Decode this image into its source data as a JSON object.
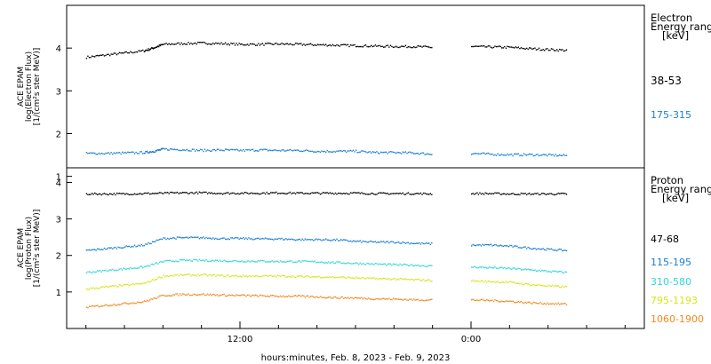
{
  "chart_data": [
    {
      "type": "scatter",
      "ylabel_lines": [
        "ACE EPAM",
        "log(Electron Flux)",
        "[1/(cm²s ster MeV)]"
      ],
      "legend_title_lines": [
        "Electron",
        "Energy ranges",
        "[keV]"
      ],
      "ylim": [
        1.2,
        5.0
      ],
      "y_ticks": [
        1,
        2,
        3,
        4
      ],
      "series": [
        {
          "name": "38-53",
          "color": "#000000",
          "x": [
            "2023-02-08T04:00",
            "2023-02-08T05:00",
            "2023-02-08T06:00",
            "2023-02-08T07:00",
            "2023-02-08T07:30",
            "2023-02-08T08:00",
            "2023-02-08T09:00",
            "2023-02-08T10:00",
            "2023-02-08T11:00",
            "2023-02-08T12:00",
            "2023-02-08T13:00",
            "2023-02-08T14:00",
            "2023-02-08T15:00",
            "2023-02-08T16:00",
            "2023-02-08T17:00",
            "2023-02-08T18:00",
            "2023-02-08T19:00",
            "2023-02-08T20:00",
            "2023-02-08T21:00",
            "2023-02-08T22:00",
            "2023-02-09T00:00",
            "2023-02-09T01:00",
            "2023-02-09T02:00",
            "2023-02-09T03:00",
            "2023-02-09T04:00",
            "2023-02-09T05:00"
          ],
          "y": [
            3.8,
            3.85,
            3.9,
            3.95,
            4.02,
            4.1,
            4.12,
            4.13,
            4.12,
            4.1,
            4.1,
            4.11,
            4.1,
            4.09,
            4.08,
            4.07,
            4.06,
            4.05,
            4.05,
            4.03,
            4.05,
            4.04,
            4.03,
            4.0,
            3.98,
            3.96
          ]
        },
        {
          "name": "175-315",
          "color": "#1a7fd1",
          "x": [
            "2023-02-08T04:00",
            "2023-02-08T05:00",
            "2023-02-08T06:00",
            "2023-02-08T07:00",
            "2023-02-08T07:30",
            "2023-02-08T08:00",
            "2023-02-08T09:00",
            "2023-02-08T10:00",
            "2023-02-08T11:00",
            "2023-02-08T12:00",
            "2023-02-08T13:00",
            "2023-02-08T14:00",
            "2023-02-08T15:00",
            "2023-02-08T16:00",
            "2023-02-08T17:00",
            "2023-02-08T18:00",
            "2023-02-08T19:00",
            "2023-02-08T20:00",
            "2023-02-08T21:00",
            "2023-02-08T22:00",
            "2023-02-09T00:00",
            "2023-02-09T01:00",
            "2023-02-09T02:00",
            "2023-02-09T03:00",
            "2023-02-09T04:00",
            "2023-02-09T05:00"
          ],
          "y": [
            1.55,
            1.55,
            1.56,
            1.57,
            1.6,
            1.65,
            1.64,
            1.62,
            1.63,
            1.62,
            1.63,
            1.62,
            1.62,
            1.6,
            1.6,
            1.6,
            1.57,
            1.57,
            1.56,
            1.53,
            1.55,
            1.53,
            1.52,
            1.52,
            1.51,
            1.5
          ]
        }
      ]
    },
    {
      "type": "scatter",
      "ylabel_lines": [
        "ACE EPAM",
        "log(Proton Flux)",
        "[1/(cm²s ster MeV)]"
      ],
      "legend_title_lines": [
        "Proton",
        "Energy ranges",
        "[keV]"
      ],
      "xlabel": "hours:minutes, Feb.  8, 2023 - Feb.  9, 2023",
      "x_ticks": [
        "12:00",
        "0:00"
      ],
      "ylim": [
        0.0,
        4.4
      ],
      "y_ticks": [
        1,
        2,
        3,
        4
      ],
      "series": [
        {
          "name": "47-68",
          "color": "#000000",
          "x": [
            "2023-02-08T04:00",
            "2023-02-08T05:00",
            "2023-02-08T06:00",
            "2023-02-08T07:00",
            "2023-02-08T08:00",
            "2023-02-08T09:00",
            "2023-02-08T10:00",
            "2023-02-08T11:00",
            "2023-02-08T12:00",
            "2023-02-08T13:00",
            "2023-02-08T14:00",
            "2023-02-08T15:00",
            "2023-02-08T16:00",
            "2023-02-08T17:00",
            "2023-02-08T18:00",
            "2023-02-08T19:00",
            "2023-02-08T20:00",
            "2023-02-08T21:00",
            "2023-02-08T22:00",
            "2023-02-09T00:00",
            "2023-02-09T01:00",
            "2023-02-09T02:00",
            "2023-02-09T03:00",
            "2023-02-09T04:00",
            "2023-02-09T05:00"
          ],
          "y": [
            3.7,
            3.7,
            3.7,
            3.71,
            3.72,
            3.73,
            3.73,
            3.72,
            3.72,
            3.72,
            3.73,
            3.72,
            3.72,
            3.72,
            3.72,
            3.71,
            3.71,
            3.71,
            3.7,
            3.71,
            3.71,
            3.7,
            3.7,
            3.7,
            3.7
          ]
        },
        {
          "name": "115-195",
          "color": "#1a7fd1",
          "x": [
            "2023-02-08T04:00",
            "2023-02-08T05:00",
            "2023-02-08T06:00",
            "2023-02-08T07:00",
            "2023-02-08T08:00",
            "2023-02-08T09:00",
            "2023-02-08T10:00",
            "2023-02-08T11:00",
            "2023-02-08T12:00",
            "2023-02-08T13:00",
            "2023-02-08T14:00",
            "2023-02-08T15:00",
            "2023-02-08T16:00",
            "2023-02-08T17:00",
            "2023-02-08T18:00",
            "2023-02-08T19:00",
            "2023-02-08T20:00",
            "2023-02-08T21:00",
            "2023-02-08T22:00",
            "2023-02-09T00:00",
            "2023-02-09T01:00",
            "2023-02-09T02:00",
            "2023-02-09T03:00",
            "2023-02-09T04:00",
            "2023-02-09T05:00"
          ],
          "y": [
            2.15,
            2.2,
            2.25,
            2.3,
            2.48,
            2.5,
            2.5,
            2.48,
            2.48,
            2.47,
            2.47,
            2.45,
            2.45,
            2.44,
            2.4,
            2.38,
            2.38,
            2.35,
            2.33,
            2.3,
            2.3,
            2.27,
            2.22,
            2.18,
            2.15
          ]
        },
        {
          "name": "310-580",
          "color": "#33d6d6",
          "x": [
            "2023-02-08T04:00",
            "2023-02-08T05:00",
            "2023-02-08T06:00",
            "2023-02-08T07:00",
            "2023-02-08T08:00",
            "2023-02-08T09:00",
            "2023-02-08T10:00",
            "2023-02-08T11:00",
            "2023-02-08T12:00",
            "2023-02-08T13:00",
            "2023-02-08T14:00",
            "2023-02-08T15:00",
            "2023-02-08T16:00",
            "2023-02-08T17:00",
            "2023-02-08T18:00",
            "2023-02-08T19:00",
            "2023-02-08T20:00",
            "2023-02-08T21:00",
            "2023-02-08T22:00",
            "2023-02-09T00:00",
            "2023-02-09T01:00",
            "2023-02-09T02:00",
            "2023-02-09T03:00",
            "2023-02-09T04:00",
            "2023-02-09T05:00"
          ],
          "y": [
            1.55,
            1.6,
            1.65,
            1.7,
            1.85,
            1.88,
            1.88,
            1.87,
            1.86,
            1.86,
            1.85,
            1.85,
            1.84,
            1.82,
            1.8,
            1.78,
            1.76,
            1.75,
            1.72,
            1.7,
            1.68,
            1.66,
            1.62,
            1.58,
            1.55
          ]
        },
        {
          "name": "795-1193",
          "color": "#d6e61a",
          "x": [
            "2023-02-08T04:00",
            "2023-02-08T05:00",
            "2023-02-08T06:00",
            "2023-02-08T07:00",
            "2023-02-08T08:00",
            "2023-02-08T09:00",
            "2023-02-08T10:00",
            "2023-02-08T11:00",
            "2023-02-08T12:00",
            "2023-02-08T13:00",
            "2023-02-08T14:00",
            "2023-02-08T15:00",
            "2023-02-08T16:00",
            "2023-02-08T17:00",
            "2023-02-08T18:00",
            "2023-02-08T19:00",
            "2023-02-08T20:00",
            "2023-02-08T21:00",
            "2023-02-08T22:00",
            "2023-02-09T00:00",
            "2023-02-09T01:00",
            "2023-02-09T02:00",
            "2023-02-09T03:00",
            "2023-02-09T04:00",
            "2023-02-09T05:00"
          ],
          "y": [
            1.1,
            1.15,
            1.2,
            1.25,
            1.45,
            1.48,
            1.48,
            1.46,
            1.45,
            1.45,
            1.45,
            1.44,
            1.43,
            1.42,
            1.4,
            1.38,
            1.37,
            1.35,
            1.33,
            1.32,
            1.3,
            1.28,
            1.22,
            1.18,
            1.15
          ]
        },
        {
          "name": "1060-1900",
          "color": "#ee8a1e",
          "x": [
            "2023-02-08T04:00",
            "2023-02-08T05:00",
            "2023-02-08T06:00",
            "2023-02-08T07:00",
            "2023-02-08T08:00",
            "2023-02-08T09:00",
            "2023-02-08T10:00",
            "2023-02-08T11:00",
            "2023-02-08T12:00",
            "2023-02-08T13:00",
            "2023-02-08T14:00",
            "2023-02-08T15:00",
            "2023-02-08T16:00",
            "2023-02-08T17:00",
            "2023-02-08T18:00",
            "2023-02-08T19:00",
            "2023-02-08T20:00",
            "2023-02-08T21:00",
            "2023-02-08T22:00",
            "2023-02-09T00:00",
            "2023-02-09T01:00",
            "2023-02-09T02:00",
            "2023-02-09T03:00",
            "2023-02-09T04:00",
            "2023-02-09T05:00"
          ],
          "y": [
            0.6,
            0.65,
            0.7,
            0.75,
            0.92,
            0.95,
            0.95,
            0.93,
            0.92,
            0.91,
            0.9,
            0.9,
            0.88,
            0.86,
            0.85,
            0.83,
            0.82,
            0.8,
            0.8,
            0.8,
            0.78,
            0.76,
            0.72,
            0.7,
            0.68
          ]
        }
      ]
    }
  ]
}
